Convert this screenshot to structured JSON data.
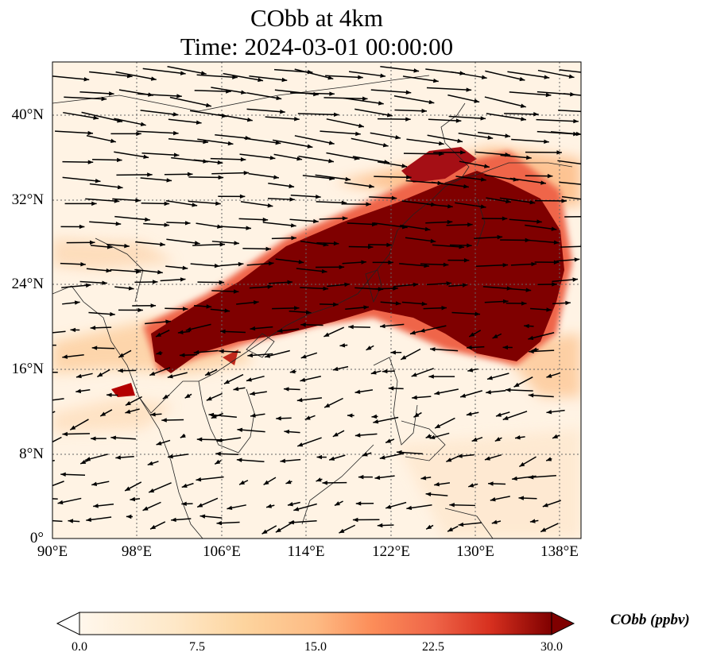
{
  "title_line1": "CObb at 4km",
  "title_line2": "Time: 2024-03-01 00:00:00",
  "map": {
    "lon_range": [
      90,
      140
    ],
    "lat_range": [
      0,
      45
    ],
    "x_ticks": [
      "90°E",
      "98°E",
      "106°E",
      "114°E",
      "122°E",
      "130°E",
      "138°E"
    ],
    "y_ticks": [
      "0°",
      "8°N",
      "16°N",
      "24°N",
      "32°N",
      "40°N"
    ],
    "gridlines": true,
    "field": "CObb concentration (filled contours) with wind vectors",
    "colors": {
      "low": "#fff5eb",
      "mid": "#fdae6b",
      "high": "#d94801",
      "max": "#7f0000"
    }
  },
  "colorbar": {
    "label": "CObb (ppbv)",
    "ticks": [
      "0.0",
      "7.5",
      "15.0",
      "22.5",
      "30.0"
    ],
    "range": [
      0,
      30
    ],
    "extend": "both",
    "colormap": "OrRd"
  }
}
